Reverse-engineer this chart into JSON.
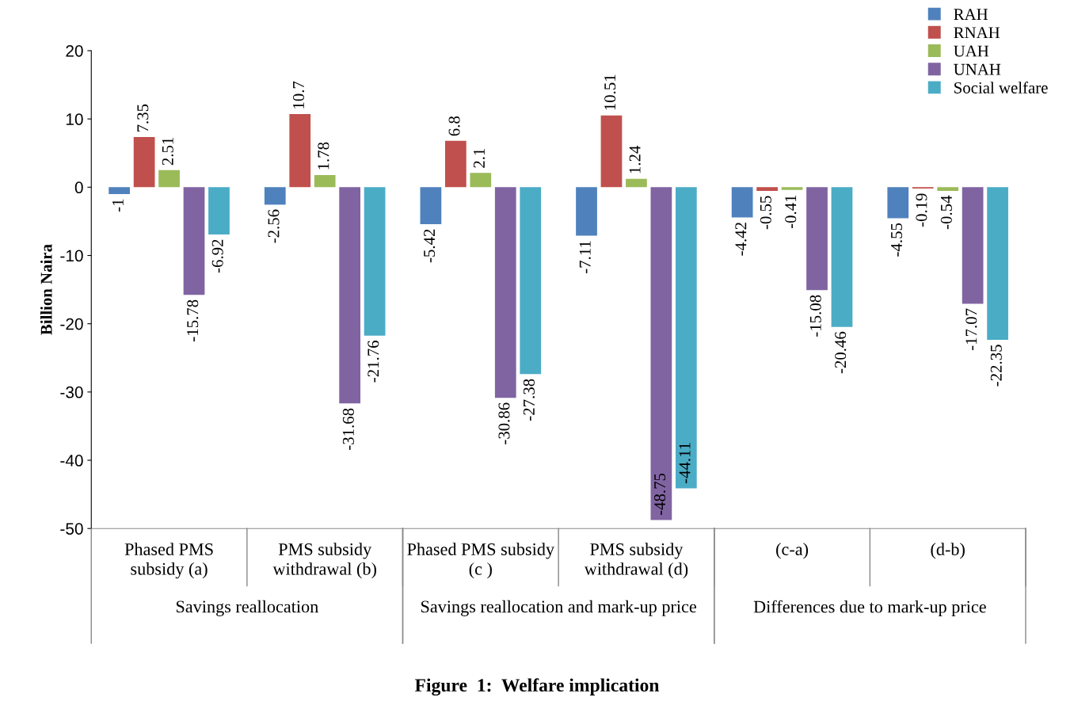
{
  "chart_data": {
    "type": "bar",
    "title": "Figure  1:  Welfare implication",
    "ylabel": "Billion Naira",
    "categories": [
      "Phased PMS subsidy (a)",
      "PMS subsidy withdrawal (b)",
      "Phased PMS subsidy (c )",
      "PMS subsidy withdrawal (d)",
      "(c-a)",
      "(d-b)"
    ],
    "annotations": [
      "Savings reallocation",
      "Savings reallocation and mark-up price",
      "Differences due to mark-up price"
    ],
    "series": [
      {
        "name": "RAH",
        "color": "#4f81bd",
        "values": [
          -1,
          -2.56,
          -5.42,
          -7.11,
          -4.42,
          -4.55
        ]
      },
      {
        "name": "RNAH",
        "color": "#c0504d",
        "values": [
          7.35,
          10.7,
          6.8,
          10.51,
          -0.55,
          -0.19
        ]
      },
      {
        "name": "UAH",
        "color": "#9bbb59",
        "values": [
          2.51,
          1.78,
          2.1,
          1.24,
          -0.41,
          -0.54
        ]
      },
      {
        "name": "UNAH",
        "color": "#8064a2",
        "values": [
          -15.78,
          -31.68,
          -30.86,
          -48.75,
          -15.08,
          -17.07
        ]
      },
      {
        "name": "Social welfare",
        "color": "#4bacc6",
        "values": [
          -6.92,
          -21.76,
          -27.38,
          -44.11,
          -20.46,
          -22.35
        ]
      }
    ],
    "ylim": [
      -50,
      20
    ],
    "yticks": [
      -50,
      -40,
      -30,
      -20,
      -10,
      0,
      10,
      20
    ],
    "data_labels": true,
    "legend": "top right",
    "grid": false
  }
}
